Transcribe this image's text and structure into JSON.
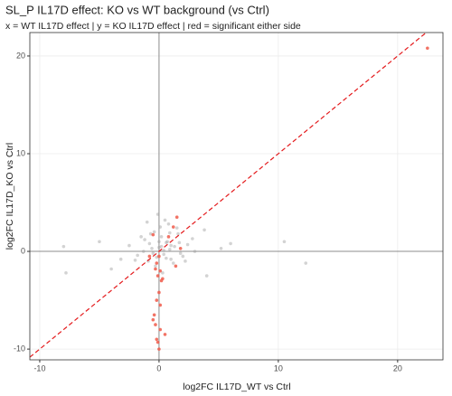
{
  "chart_data": {
    "type": "scatter",
    "title": "SL_P IL17D effect: KO vs WT background (vs Ctrl)",
    "subtitle": "x = WT IL17D effect | y = KO IL17D effect | red = significant either side",
    "x_label": "log2FC IL17D_WT vs Ctrl",
    "y_label": "log2FC IL17D_KO vs Ctrl",
    "xlim": [
      -10.83,
      23.8
    ],
    "ylim": [
      -11.1,
      22.4
    ],
    "xticks": [
      -10,
      0,
      10,
      20
    ],
    "yticks": [
      -10,
      0,
      10,
      20
    ],
    "grid": true,
    "zero_lines": true,
    "identity_line": true,
    "identity_color": "#e41a1c",
    "series": [
      {
        "color": "#9e9e9e",
        "opacity": 0.45,
        "x": [
          -7.8,
          -8.0,
          -5.0,
          -3.2,
          12.3,
          10.5,
          6.0,
          4.0,
          3.8,
          -2.5,
          -1.8,
          -1.2,
          -0.9,
          -0.6,
          -0.4,
          -0.2,
          0.0,
          0.2,
          0.4,
          0.6,
          0.8,
          1.0,
          1.3,
          1.6,
          2.0,
          2.4,
          2.8,
          -1.5,
          -0.8,
          -0.3,
          0.1,
          0.5,
          0.9,
          1.2,
          1.8,
          -2.0,
          -1.0,
          0.3,
          0.7,
          1.5,
          -0.5,
          0.0,
          0.4,
          2.2,
          3.0,
          -1.3,
          0.6,
          1.0,
          -0.7,
          0.2,
          1.7,
          -0.1,
          0.9,
          5.2,
          -4.0
        ],
        "values": [
          -2.2,
          0.5,
          1.0,
          -0.8,
          -1.2,
          1.0,
          0.8,
          -2.5,
          2.2,
          0.6,
          -0.4,
          1.2,
          -1.0,
          0.3,
          2.0,
          -0.6,
          0.4,
          1.5,
          -0.3,
          0.9,
          2.8,
          -0.8,
          0.5,
          1.8,
          -0.5,
          0.7,
          1.3,
          1.5,
          0.8,
          -1.5,
          2.5,
          3.2,
          0.2,
          -1.2,
          -0.2,
          -0.9,
          3.0,
          -2.2,
          1.0,
          2.4,
          -0.2,
          1.0,
          0.1,
          -1.0,
          0.0,
          0.0,
          -0.7,
          0.6,
          1.8,
          0.5,
          0.9,
          3.8,
          1.9,
          0.3,
          -1.8
        ]
      },
      {
        "color": "#f05a4a",
        "opacity": 0.85,
        "x": [
          22.5,
          0.0,
          -0.2,
          0.1,
          -0.1,
          0.2,
          0.0,
          -0.2,
          0.1,
          -0.5,
          -0.3,
          0.1,
          -0.2,
          -0.1,
          0.5,
          -0.4,
          0.0,
          1.5,
          1.2,
          -0.5,
          0.8,
          1.4,
          1.8,
          -0.8,
          -0.3,
          0.3
        ],
        "values": [
          20.8,
          -0.5,
          -1.2,
          -2.0,
          -2.5,
          -3.0,
          -4.2,
          -5.0,
          -5.5,
          -7.0,
          -7.5,
          -8.0,
          -9.0,
          -9.3,
          -8.5,
          -6.5,
          -10.0,
          3.5,
          2.5,
          1.7,
          1.5,
          -1.5,
          0.3,
          -0.5,
          -1.8,
          -2.8
        ]
      }
    ]
  }
}
